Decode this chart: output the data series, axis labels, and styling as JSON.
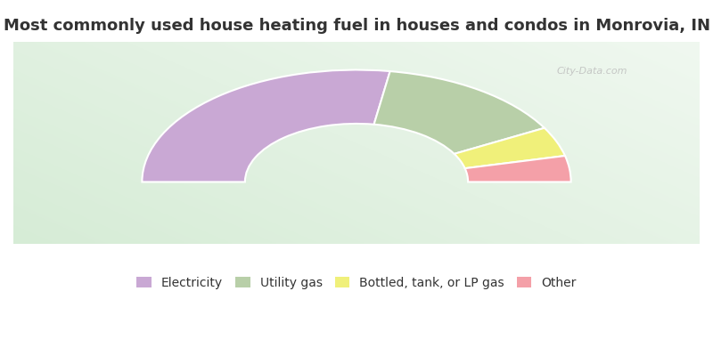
{
  "title": "Most commonly used house heating fuel in houses and condos in Monrovia, IN",
  "segments": [
    {
      "label": "Electricity",
      "value": 55.0,
      "color": "#c9a8d4"
    },
    {
      "label": "Utility gas",
      "value": 29.0,
      "color": "#b8cfa8"
    },
    {
      "label": "Bottled, tank, or LP gas",
      "value": 8.5,
      "color": "#f0f07a"
    },
    {
      "label": "Other",
      "value": 7.5,
      "color": "#f4a0a8"
    }
  ],
  "fig_bg_color": "#ffffff",
  "chart_bg_color_left": "#d6ecd6",
  "chart_bg_color_right": "#f0f8f0",
  "title_color": "#333333",
  "title_fontsize": 13,
  "legend_fontsize": 10,
  "watermark": "City-Data.com",
  "outer_r": 1.0,
  "inner_r": 0.52
}
